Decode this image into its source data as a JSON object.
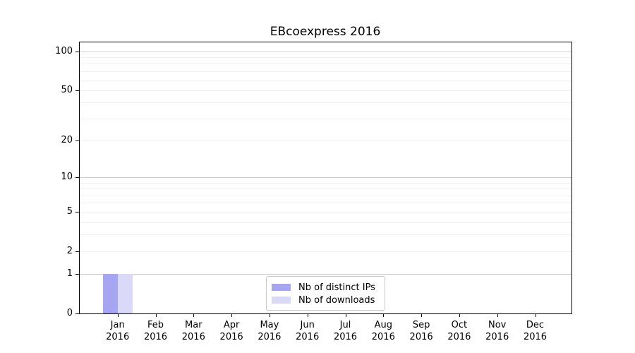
{
  "chart_data": {
    "type": "bar",
    "title": "EBcoexpress 2016",
    "categories": [
      "Jan 2016",
      "Feb 2016",
      "Mar 2016",
      "Apr 2016",
      "May 2016",
      "Jun 2016",
      "Jul 2016",
      "Aug 2016",
      "Sep 2016",
      "Oct 2016",
      "Nov 2016",
      "Dec 2016"
    ],
    "series": [
      {
        "name": "Nb of distinct IPs",
        "color": "#a5a5f2",
        "values": [
          1,
          0,
          0,
          0,
          0,
          0,
          0,
          0,
          0,
          0,
          0,
          0
        ]
      },
      {
        "name": "Nb of downloads",
        "color": "#dadaf8",
        "values": [
          1,
          0,
          0,
          0,
          0,
          0,
          0,
          0,
          0,
          0,
          0,
          0
        ]
      }
    ],
    "xlabel": "",
    "ylabel": "",
    "yscale": "log1p",
    "ylim": [
      0,
      117
    ],
    "yticks": [
      0,
      1,
      2,
      5,
      10,
      20,
      50,
      100
    ],
    "grid": {
      "major": [
        1,
        10,
        100
      ],
      "minor": [
        2,
        3,
        4,
        5,
        6,
        7,
        8,
        9,
        20,
        30,
        40,
        50,
        60,
        70,
        80,
        90
      ],
      "major_color": "#cccccc",
      "minor_color": "#efefef"
    },
    "legend": {
      "position": "lower center inside",
      "entries": [
        "Nb of distinct IPs",
        "Nb of downloads"
      ]
    },
    "axis_color": "#000000",
    "text_color": "#000000"
  }
}
